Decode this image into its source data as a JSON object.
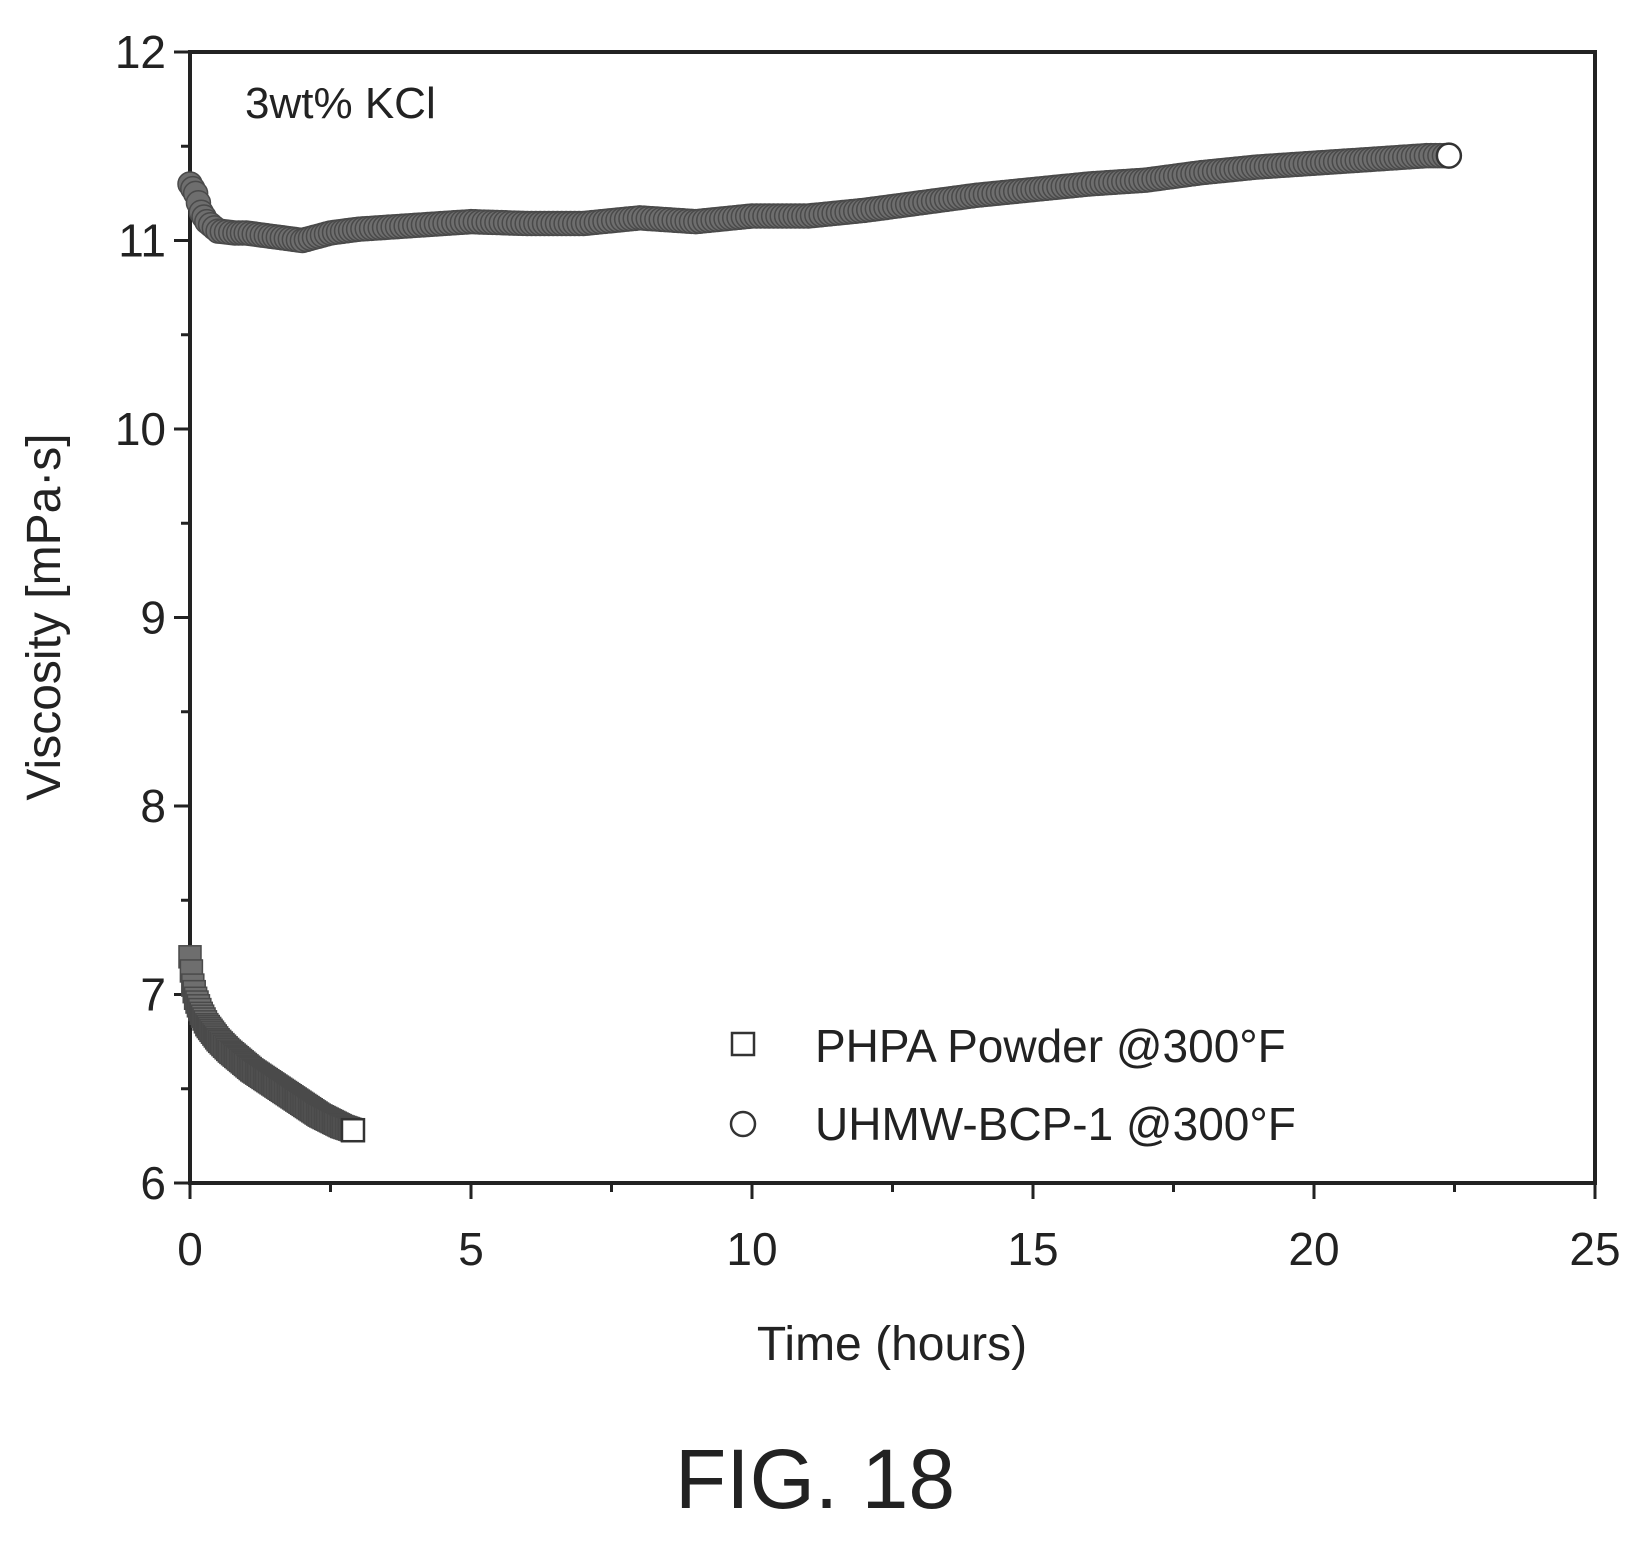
{
  "figure_caption": "FIG. 18",
  "chart_data": {
    "type": "scatter",
    "xlabel": "Time (hours)",
    "ylabel": "Viscosity [mPa·s]",
    "xlim": [
      0,
      25
    ],
    "ylim": [
      6,
      12
    ],
    "xticks": [
      0,
      5,
      10,
      15,
      20,
      25
    ],
    "yticks": [
      6,
      7,
      8,
      9,
      10,
      11,
      12
    ],
    "annotation": "3wt% KCl",
    "legend_position": "bottom-center",
    "grid": false,
    "series": [
      {
        "name": "PHPA Powder @300°F",
        "marker": "square",
        "x": [
          0.0,
          0.05,
          0.1,
          0.2,
          0.3,
          0.4,
          0.5,
          0.7,
          0.9,
          1.1,
          1.3,
          1.5,
          1.7,
          1.9,
          2.1,
          2.3,
          2.5,
          2.7,
          2.9
        ],
        "y": [
          7.2,
          7.05,
          6.98,
          6.9,
          6.84,
          6.8,
          6.76,
          6.7,
          6.65,
          6.6,
          6.56,
          6.52,
          6.48,
          6.44,
          6.4,
          6.36,
          6.33,
          6.3,
          6.28
        ]
      },
      {
        "name": "UHMW-BCP-1 @300°F",
        "marker": "circle",
        "x": [
          0.0,
          0.1,
          0.2,
          0.3,
          0.5,
          0.8,
          1.0,
          1.5,
          2.0,
          2.5,
          3.0,
          4.0,
          5.0,
          6.0,
          7.0,
          8.0,
          9.0,
          10.0,
          11.0,
          12.0,
          13.0,
          14.0,
          15.0,
          16.0,
          17.0,
          18.0,
          19.0,
          20.0,
          21.0,
          22.0,
          22.4
        ],
        "y": [
          11.3,
          11.25,
          11.15,
          11.1,
          11.05,
          11.04,
          11.04,
          11.02,
          11.0,
          11.04,
          11.06,
          11.08,
          11.1,
          11.09,
          11.09,
          11.12,
          11.1,
          11.13,
          11.13,
          11.16,
          11.2,
          11.24,
          11.27,
          11.3,
          11.32,
          11.36,
          11.39,
          11.41,
          11.43,
          11.45,
          11.45
        ]
      }
    ]
  }
}
